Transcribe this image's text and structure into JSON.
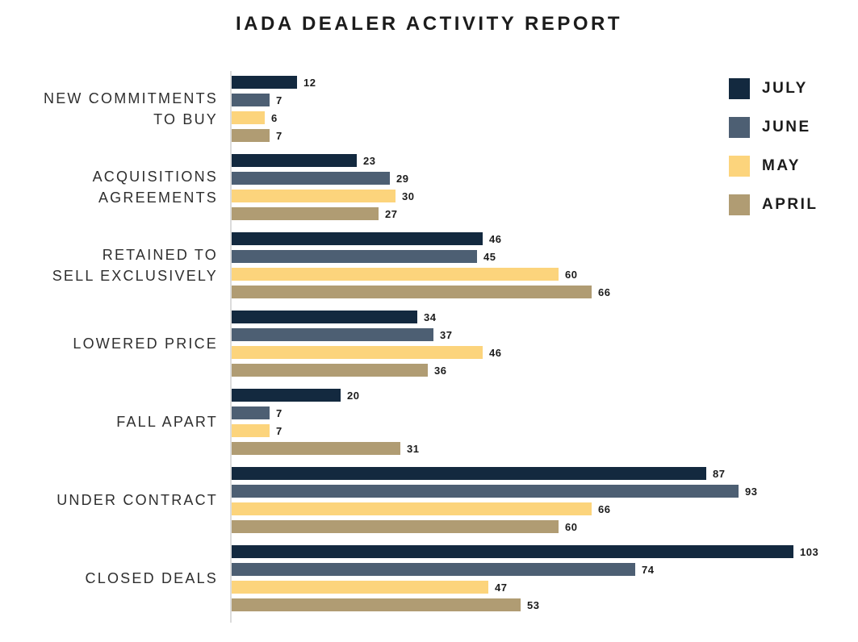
{
  "title": "IADA DEALER ACTIVITY REPORT",
  "legend": [
    {
      "label": "JULY",
      "color": "#13293f"
    },
    {
      "label": "JUNE",
      "color": "#4d5f73"
    },
    {
      "label": "MAY",
      "color": "#fcd47c"
    },
    {
      "label": "APRIL",
      "color": "#b09c73"
    }
  ],
  "colors": {
    "july": "#13293f",
    "june": "#4d5f73",
    "may": "#fcd47c",
    "april": "#b09c73",
    "axis_line": "#dcdcdc",
    "title_text": "#1c1c1c",
    "label_text": "#2e2e2e"
  },
  "chart_data": {
    "type": "bar",
    "orientation": "horizontal",
    "title": "IADA DEALER ACTIVITY REPORT",
    "categories": [
      "NEW COMMITMENTS TO BUY",
      "ACQUISITIONS AGREEMENTS",
      "RETAINED TO SELL EXCLUSIVELY",
      "LOWERED PRICE",
      "FALL APART",
      "UNDER CONTRACT",
      "CLOSED DEALS"
    ],
    "category_display_lines": [
      [
        "NEW COMMITMENTS",
        "TO BUY"
      ],
      [
        "ACQUISITIONS",
        "AGREEMENTS"
      ],
      [
        "RETAINED TO",
        "SELL EXCLUSIVELY"
      ],
      [
        "LOWERED PRICE"
      ],
      [
        "FALL APART"
      ],
      [
        "UNDER CONTRACT"
      ],
      [
        "CLOSED DEALS"
      ]
    ],
    "series": [
      {
        "name": "JULY",
        "color": "#13293f",
        "values": [
          12,
          23,
          46,
          34,
          20,
          87,
          103
        ]
      },
      {
        "name": "JUNE",
        "color": "#4d5f73",
        "values": [
          7,
          29,
          45,
          37,
          7,
          93,
          74
        ]
      },
      {
        "name": "MAY",
        "color": "#fcd47c",
        "values": [
          6,
          30,
          60,
          46,
          7,
          66,
          47
        ]
      },
      {
        "name": "APRIL",
        "color": "#b09c73",
        "values": [
          7,
          27,
          66,
          36,
          31,
          60,
          53
        ]
      }
    ],
    "value_labels_shown": true,
    "xlabel": "",
    "ylabel": "",
    "xlim": [
      0,
      110
    ],
    "grid": false,
    "legend_position": "top-right"
  }
}
